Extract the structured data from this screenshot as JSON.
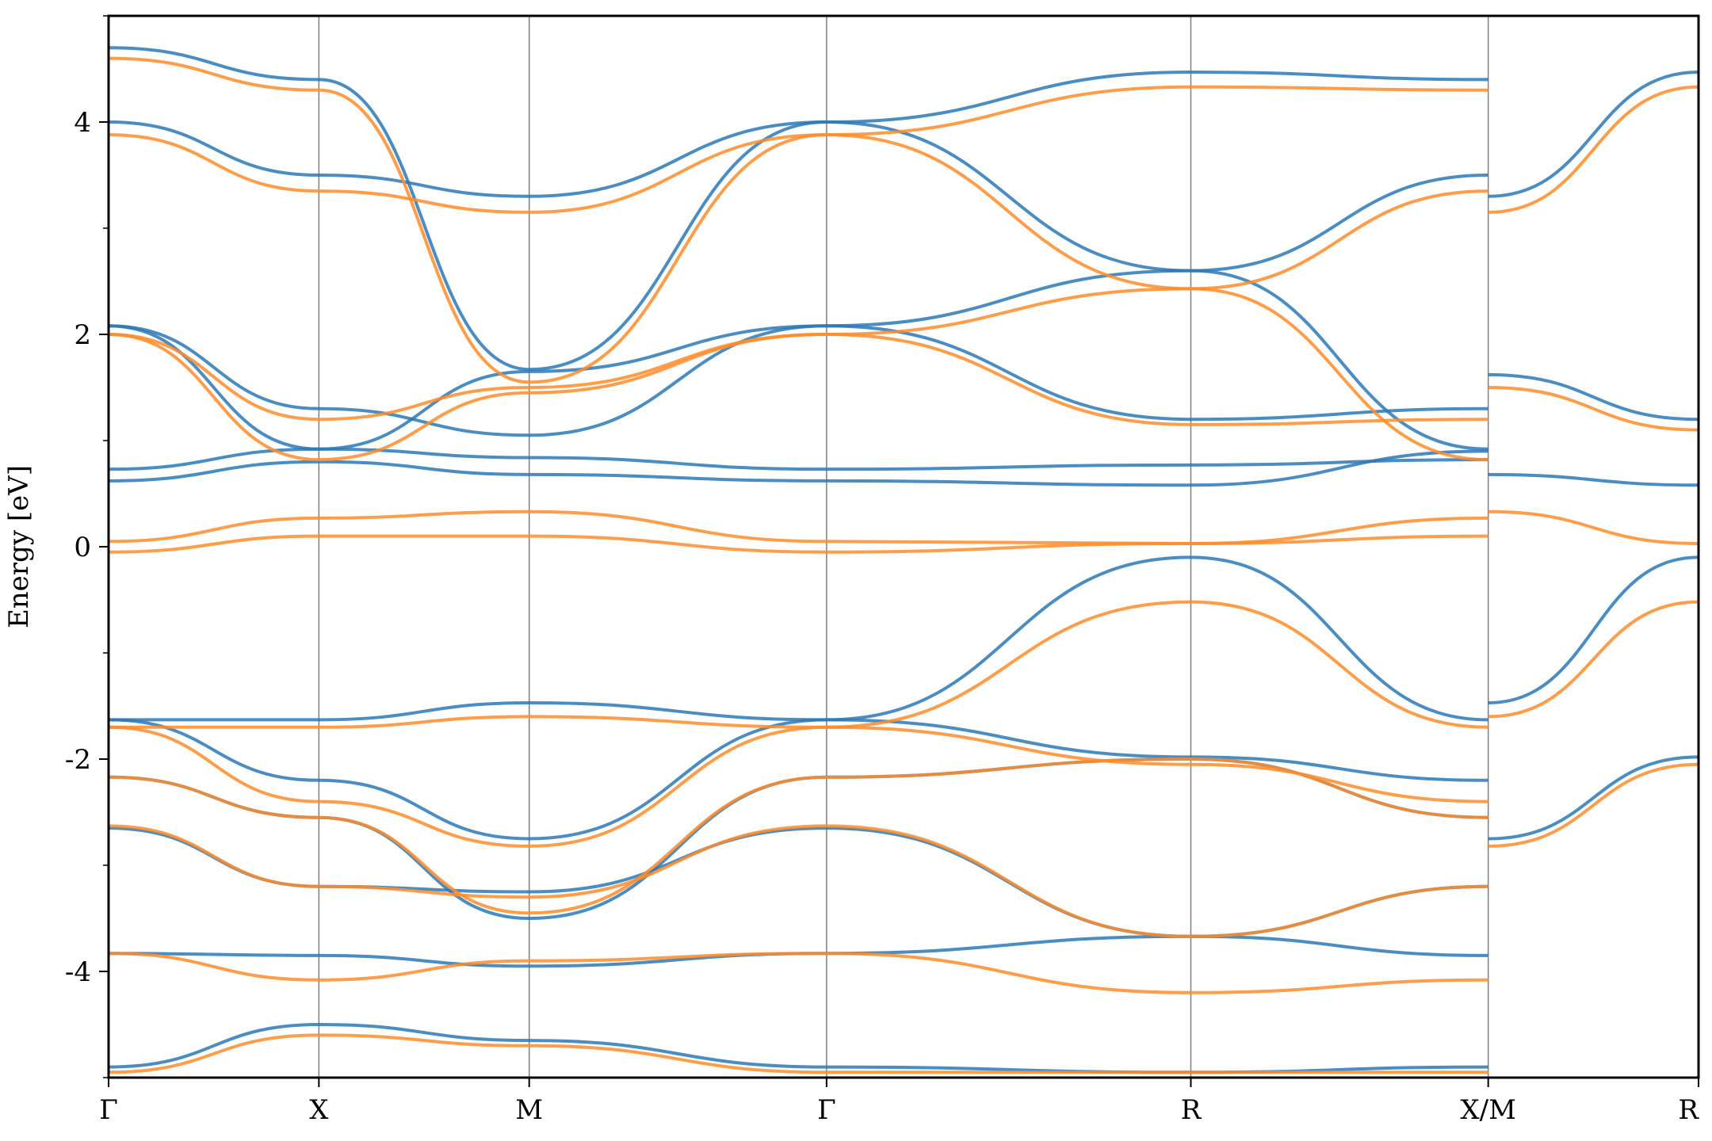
{
  "chart_data": {
    "type": "line",
    "title": "",
    "xlabel": "",
    "ylabel": "Energy [eV]",
    "ylim": [
      -5,
      5
    ],
    "y_ticks": [
      4,
      2,
      0,
      -2,
      -4
    ],
    "y_tick_labels": [
      "4",
      "2",
      "0",
      "-2",
      "-4"
    ],
    "path_ticks": [
      "Γ",
      "X",
      "M",
      "Γ",
      "R",
      "X/M",
      "R"
    ],
    "path_positions": [
      0,
      0.5,
      1.0,
      1.707,
      2.573,
      3.28,
      3.78
    ],
    "segment_break_after_index": 5,
    "grid": false,
    "legend": "none",
    "colors": {
      "series_a": "#2b78b6",
      "series_b": "#ff8c2a",
      "vlines": "#7f7f7f"
    },
    "series": [
      {
        "color_key": "series_a",
        "bands": [
          {
            "x": [
              0,
              0.5,
              1.0,
              1.707,
              2.573,
              3.28
            ],
            "y": [
              -4.9,
              -4.5,
              -4.65,
              -4.9,
              -4.95,
              -4.9
            ]
          },
          {
            "x": [
              0,
              0.5,
              1.0,
              1.707,
              2.573,
              3.28
            ],
            "y": [
              -3.83,
              -3.85,
              -3.95,
              -3.83,
              -3.67,
              -3.85
            ]
          },
          {
            "x": [
              0,
              0.5,
              1.0,
              1.707,
              2.573,
              3.28
            ],
            "y": [
              -2.65,
              -3.2,
              -3.25,
              -2.65,
              -3.67,
              -3.2
            ]
          },
          {
            "x": [
              0,
              0.5,
              1.0,
              1.707,
              2.573,
              3.28
            ],
            "y": [
              -2.17,
              -2.55,
              -3.5,
              -2.17,
              -2.0,
              -2.55
            ]
          },
          {
            "x": [
              0,
              0.5,
              1.0,
              1.707,
              2.573,
              3.28
            ],
            "y": [
              -1.63,
              -2.2,
              -2.75,
              -1.63,
              -1.98,
              -2.2
            ]
          },
          {
            "x": [
              0,
              0.5,
              1.0,
              1.707,
              2.573,
              3.28
            ],
            "y": [
              -1.63,
              -1.63,
              -1.47,
              -1.63,
              -0.1,
              -1.63
            ]
          },
          {
            "x": [
              0,
              0.5,
              1.0,
              1.707,
              2.573,
              3.28
            ],
            "y": [
              0.62,
              0.8,
              0.68,
              0.62,
              0.58,
              0.9
            ]
          },
          {
            "x": [
              0,
              0.5,
              1.0,
              1.707,
              2.573,
              3.28
            ],
            "y": [
              0.73,
              0.92,
              0.84,
              0.73,
              0.77,
              0.82
            ]
          },
          {
            "x": [
              0,
              0.5,
              1.0,
              1.707,
              2.573,
              3.28
            ],
            "y": [
              2.08,
              1.3,
              1.05,
              2.08,
              1.2,
              1.3
            ]
          },
          {
            "x": [
              0,
              0.5,
              1.0,
              1.707,
              2.573,
              3.28
            ],
            "y": [
              2.08,
              0.92,
              1.65,
              2.08,
              2.6,
              0.92
            ]
          },
          {
            "x": [
              0,
              0.5,
              1.0,
              1.707,
              2.573,
              3.28
            ],
            "y": [
              4.0,
              3.5,
              3.3,
              4.0,
              2.6,
              3.5
            ]
          },
          {
            "x": [
              0,
              0.5,
              1.0,
              1.707,
              2.573,
              3.28
            ],
            "y": [
              4.7,
              4.4,
              1.67,
              4.0,
              4.47,
              4.4
            ]
          },
          {
            "x": [
              3.28,
              3.78
            ],
            "y": [
              1.62,
              1.2
            ]
          },
          {
            "x": [
              3.28,
              3.78
            ],
            "y": [
              3.3,
              4.47
            ]
          },
          {
            "x": [
              3.28,
              3.78
            ],
            "y": [
              -1.47,
              -0.1
            ]
          },
          {
            "x": [
              3.28,
              3.78
            ],
            "y": [
              -2.75,
              -1.98
            ]
          },
          {
            "x": [
              3.28,
              3.78
            ],
            "y": [
              0.68,
              0.58
            ]
          }
        ]
      },
      {
        "color_key": "series_b",
        "bands": [
          {
            "x": [
              0,
              0.5,
              1.0,
              1.707,
              2.573,
              3.28
            ],
            "y": [
              -4.95,
              -4.6,
              -4.7,
              -4.95,
              -4.95,
              -4.95
            ]
          },
          {
            "x": [
              0,
              0.5,
              1.0,
              1.707,
              2.573,
              3.28
            ],
            "y": [
              -3.83,
              -4.08,
              -3.9,
              -3.83,
              -4.2,
              -4.08
            ]
          },
          {
            "x": [
              0,
              0.5,
              1.0,
              1.707,
              2.573,
              3.28
            ],
            "y": [
              -2.63,
              -3.2,
              -3.3,
              -2.63,
              -3.67,
              -3.2
            ]
          },
          {
            "x": [
              0,
              0.5,
              1.0,
              1.707,
              2.573,
              3.28
            ],
            "y": [
              -2.17,
              -2.55,
              -3.45,
              -2.17,
              -2.0,
              -2.55
            ]
          },
          {
            "x": [
              0,
              0.5,
              1.0,
              1.707,
              2.573,
              3.28
            ],
            "y": [
              -1.7,
              -2.4,
              -2.82,
              -1.7,
              -2.05,
              -2.4
            ]
          },
          {
            "x": [
              0,
              0.5,
              1.0,
              1.707,
              2.573,
              3.28
            ],
            "y": [
              -1.7,
              -1.7,
              -1.6,
              -1.7,
              -0.52,
              -1.7
            ]
          },
          {
            "x": [
              0,
              0.5,
              1.0,
              1.707,
              2.573,
              3.28
            ],
            "y": [
              -0.05,
              0.1,
              0.1,
              -0.05,
              0.03,
              0.1
            ]
          },
          {
            "x": [
              0,
              0.5,
              1.0,
              1.707,
              2.573,
              3.28
            ],
            "y": [
              0.05,
              0.27,
              0.33,
              0.05,
              0.03,
              0.27
            ]
          },
          {
            "x": [
              0,
              0.5,
              1.0,
              1.707,
              2.573,
              3.28
            ],
            "y": [
              2.0,
              1.2,
              1.5,
              2.0,
              1.15,
              1.2
            ]
          },
          {
            "x": [
              0,
              0.5,
              1.0,
              1.707,
              2.573,
              3.28
            ],
            "y": [
              2.0,
              0.82,
              1.45,
              2.0,
              2.43,
              0.82
            ]
          },
          {
            "x": [
              0,
              0.5,
              1.0,
              1.707,
              2.573,
              3.28
            ],
            "y": [
              3.88,
              3.35,
              3.15,
              3.88,
              2.43,
              3.35
            ]
          },
          {
            "x": [
              0,
              0.5,
              1.0,
              1.707,
              2.573,
              3.28
            ],
            "y": [
              4.6,
              4.3,
              1.55,
              3.88,
              4.33,
              4.3
            ]
          },
          {
            "x": [
              3.28,
              3.78
            ],
            "y": [
              1.5,
              1.1
            ]
          },
          {
            "x": [
              3.28,
              3.78
            ],
            "y": [
              3.15,
              4.33
            ]
          },
          {
            "x": [
              3.28,
              3.78
            ],
            "y": [
              -1.6,
              -0.52
            ]
          },
          {
            "x": [
              3.28,
              3.78
            ],
            "y": [
              -2.82,
              -2.05
            ]
          },
          {
            "x": [
              3.28,
              3.78
            ],
            "y": [
              0.33,
              0.03
            ]
          }
        ]
      }
    ]
  }
}
